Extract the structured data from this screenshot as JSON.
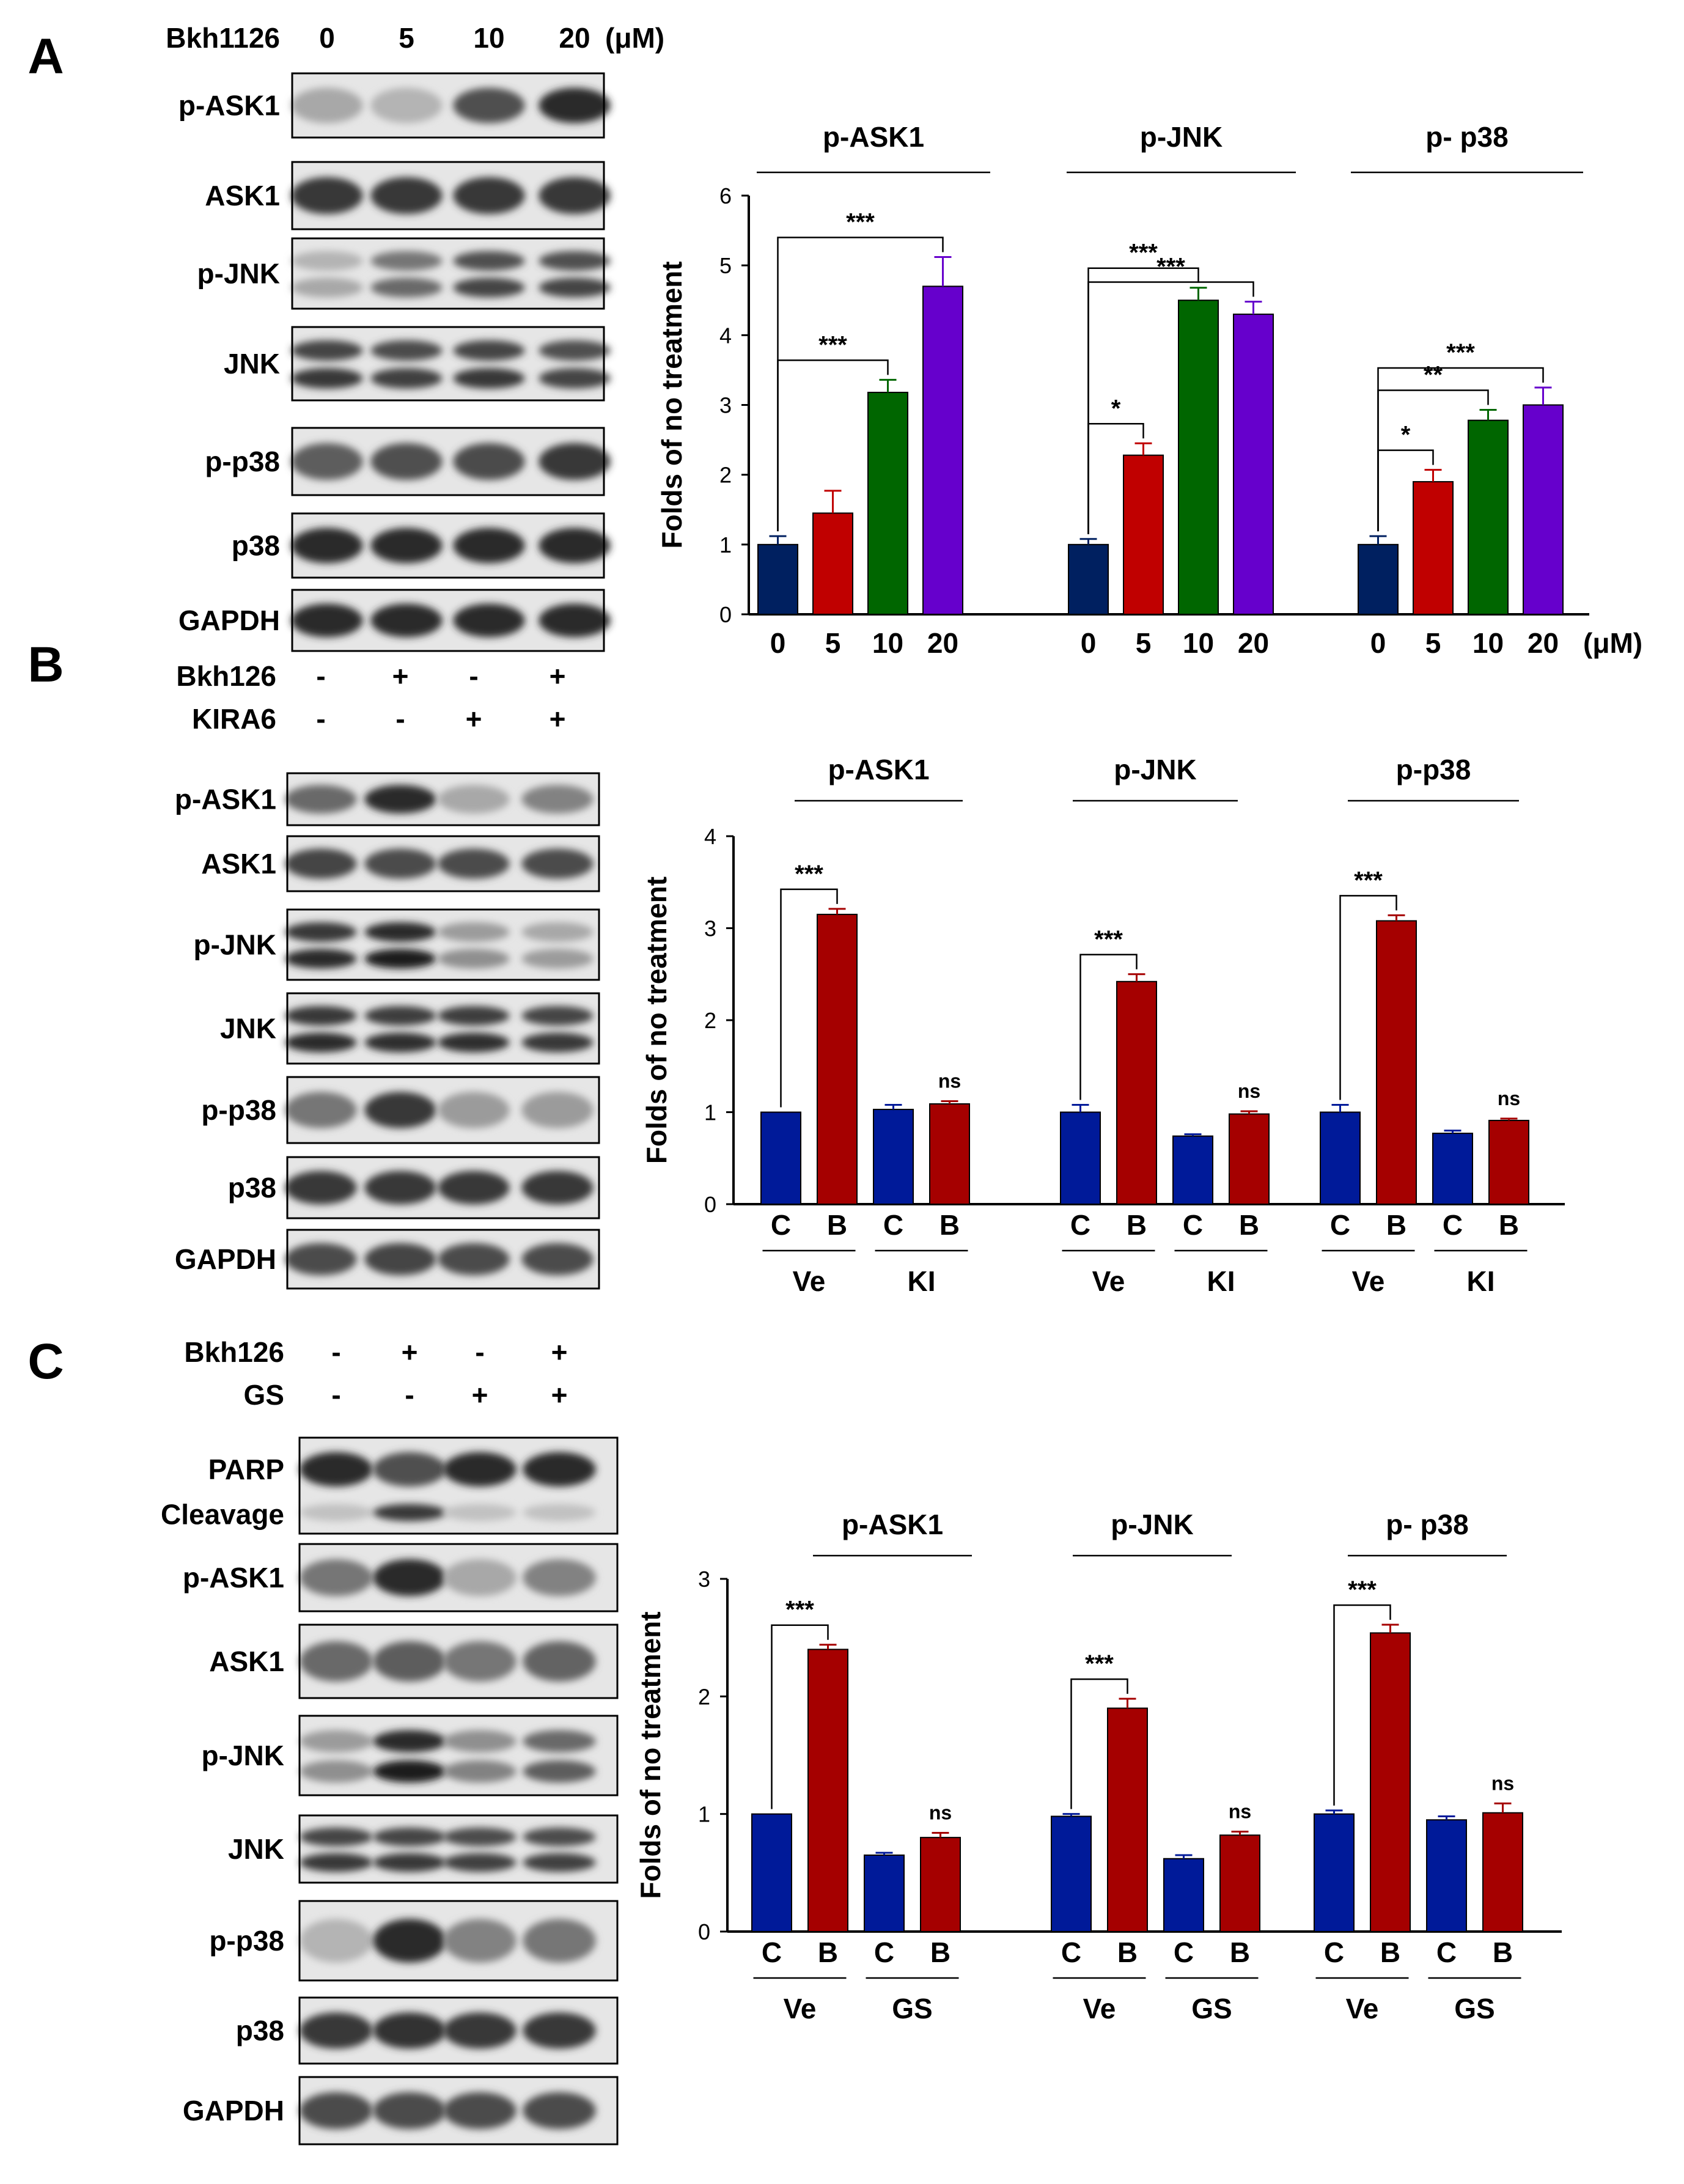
{
  "panels": [
    {
      "letter": "A",
      "blot": {
        "treatments": [
          {
            "name": "Bkh1126",
            "values": [
              "0",
              "5",
              "10",
              "20"
            ],
            "unit": "(μM)"
          }
        ],
        "rows": [
          {
            "label": "p-ASK1",
            "profile": [
              0.35,
              0.3,
              0.7,
              0.85
            ],
            "double": false
          },
          {
            "label": "ASK1",
            "profile": [
              0.8,
              0.8,
              0.8,
              0.8
            ],
            "double": false
          },
          {
            "label": "p-JNK",
            "profile": [
              0.3,
              0.55,
              0.7,
              0.7
            ],
            "double": true
          },
          {
            "label": "JNK",
            "profile": [
              0.75,
              0.72,
              0.75,
              0.7
            ],
            "double": true
          },
          {
            "label": "p-p38",
            "profile": [
              0.65,
              0.7,
              0.72,
              0.8
            ],
            "double": false
          },
          {
            "label": "p38",
            "profile": [
              0.85,
              0.85,
              0.85,
              0.85
            ],
            "double": false
          },
          {
            "label": "GAPDH",
            "profile": [
              0.85,
              0.85,
              0.85,
              0.85
            ],
            "double": false
          }
        ]
      }
    },
    {
      "letter": "B",
      "blot": {
        "treatments": [
          {
            "name": "Bkh126",
            "values": [
              "-",
              "+",
              "-",
              "+"
            ],
            "unit": ""
          },
          {
            "name": "KIRA6",
            "values": [
              "-",
              "-",
              "+",
              "+"
            ],
            "unit": ""
          }
        ],
        "rows": [
          {
            "label": "p-ASK1",
            "profile": [
              0.6,
              0.85,
              0.35,
              0.5
            ],
            "double": false
          },
          {
            "label": "ASK1",
            "profile": [
              0.75,
              0.72,
              0.72,
              0.72
            ],
            "double": false
          },
          {
            "label": "p-JNK",
            "profile": [
              0.8,
              0.85,
              0.4,
              0.35
            ],
            "double": true
          },
          {
            "label": "JNK",
            "profile": [
              0.8,
              0.78,
              0.78,
              0.75
            ],
            "double": true
          },
          {
            "label": "p-p38",
            "profile": [
              0.55,
              0.8,
              0.4,
              0.4
            ],
            "double": false
          },
          {
            "label": "p38",
            "profile": [
              0.8,
              0.8,
              0.8,
              0.8
            ],
            "double": false
          },
          {
            "label": "GAPDH",
            "profile": [
              0.72,
              0.75,
              0.72,
              0.72
            ],
            "double": false
          }
        ]
      }
    },
    {
      "letter": "C",
      "blot": {
        "treatments": [
          {
            "name": "Bkh126",
            "values": [
              "-",
              "+",
              "-",
              "+"
            ],
            "unit": ""
          },
          {
            "name": "GS",
            "values": [
              "-",
              "-",
              "+",
              "+"
            ],
            "unit": ""
          }
        ],
        "rows": [
          {
            "label": "PARP",
            "label2": "Cleavage",
            "profile": [
              0.85,
              0.7,
              0.85,
              0.85
            ],
            "profile2": [
              0.25,
              0.8,
              0.25,
              0.25
            ],
            "double": false,
            "tall": true
          },
          {
            "label": "p-ASK1",
            "profile": [
              0.55,
              0.85,
              0.35,
              0.5
            ],
            "double": false
          },
          {
            "label": "ASK1",
            "profile": [
              0.6,
              0.65,
              0.55,
              0.62
            ],
            "double": false
          },
          {
            "label": "p-JNK",
            "profile": [
              0.4,
              0.85,
              0.45,
              0.6
            ],
            "double": true
          },
          {
            "label": "JNK",
            "profile": [
              0.75,
              0.75,
              0.72,
              0.72
            ],
            "double": true
          },
          {
            "label": "p-p38",
            "profile": [
              0.3,
              0.85,
              0.5,
              0.55
            ],
            "double": false
          },
          {
            "label": "p38",
            "profile": [
              0.8,
              0.82,
              0.8,
              0.8
            ],
            "double": false
          },
          {
            "label": "GAPDH",
            "profile": [
              0.72,
              0.72,
              0.72,
              0.72
            ],
            "double": false
          }
        ]
      }
    }
  ],
  "chart_data": [
    {
      "panel": "A",
      "type": "bar",
      "ylabel": "Folds of no treatment",
      "ylim": [
        0,
        6
      ],
      "yticks": [
        0,
        1,
        2,
        3,
        4,
        5,
        6
      ],
      "x_unit": "(μM)",
      "groups": [
        {
          "title": "p-ASK1",
          "categories": [
            "0",
            "5",
            "10",
            "20"
          ],
          "values": [
            1.0,
            1.45,
            3.18,
            4.7
          ],
          "errors": [
            0.12,
            0.32,
            0.18,
            0.42
          ],
          "sig": [
            {
              "from": 0,
              "to": 2,
              "label": "***"
            },
            {
              "from": 0,
              "to": 3,
              "label": "***"
            }
          ]
        },
        {
          "title": "p-JNK",
          "categories": [
            "0",
            "5",
            "10",
            "20"
          ],
          "values": [
            1.0,
            2.28,
            4.5,
            4.3
          ],
          "errors": [
            0.08,
            0.17,
            0.18,
            0.18
          ],
          "sig": [
            {
              "from": 0,
              "to": 1,
              "label": "*"
            },
            {
              "from": 0,
              "to": 2,
              "label": "***"
            },
            {
              "from": 0,
              "to": 3,
              "label": "***"
            }
          ]
        },
        {
          "title": "p- p38",
          "categories": [
            "0",
            "5",
            "10",
            "20"
          ],
          "values": [
            1.0,
            1.9,
            2.78,
            3.0
          ],
          "errors": [
            0.12,
            0.17,
            0.15,
            0.25
          ],
          "sig": [
            {
              "from": 0,
              "to": 1,
              "label": "*"
            },
            {
              "from": 0,
              "to": 2,
              "label": "**"
            },
            {
              "from": 0,
              "to": 3,
              "label": "***"
            }
          ]
        }
      ],
      "colors": [
        "#002060",
        "#c00000",
        "#006600",
        "#6600cc"
      ]
    },
    {
      "panel": "B",
      "type": "bar",
      "ylabel": "Folds of no treatment",
      "ylim": [
        0,
        4
      ],
      "yticks": [
        0,
        1,
        2,
        3,
        4
      ],
      "groups": [
        {
          "title": "p-ASK1",
          "categories": [
            "C",
            "B",
            "C",
            "B"
          ],
          "subgroups": [
            "Ve",
            "KI"
          ],
          "values": [
            1.0,
            3.15,
            1.03,
            1.09
          ],
          "errors": [
            0.0,
            0.06,
            0.05,
            0.03
          ],
          "sig": [
            {
              "from": 0,
              "to": 1,
              "label": "***"
            }
          ],
          "ns": [
            3
          ]
        },
        {
          "title": "p-JNK",
          "categories": [
            "C",
            "B",
            "C",
            "B"
          ],
          "subgroups": [
            "Ve",
            "KI"
          ],
          "values": [
            1.0,
            2.42,
            0.74,
            0.98
          ],
          "errors": [
            0.08,
            0.08,
            0.02,
            0.03
          ],
          "sig": [
            {
              "from": 0,
              "to": 1,
              "label": "***"
            }
          ],
          "ns": [
            3
          ]
        },
        {
          "title": "p-p38",
          "categories": [
            "C",
            "B",
            "C",
            "B"
          ],
          "subgroups": [
            "Ve",
            "KI"
          ],
          "values": [
            1.0,
            3.08,
            0.77,
            0.91
          ],
          "errors": [
            0.08,
            0.06,
            0.03,
            0.02
          ],
          "sig": [
            {
              "from": 0,
              "to": 1,
              "label": "***"
            }
          ],
          "ns": [
            3
          ]
        }
      ],
      "colors": [
        "#001a99",
        "#a50000"
      ]
    },
    {
      "panel": "C",
      "type": "bar",
      "ylabel": "Folds of no treatment",
      "ylim": [
        0,
        3
      ],
      "yticks": [
        0,
        1,
        2,
        3
      ],
      "groups": [
        {
          "title": "p-ASK1",
          "categories": [
            "C",
            "B",
            "C",
            "B"
          ],
          "subgroups": [
            "Ve",
            "GS"
          ],
          "values": [
            1.0,
            2.4,
            0.65,
            0.8
          ],
          "errors": [
            0.0,
            0.04,
            0.02,
            0.04
          ],
          "sig": [
            {
              "from": 0,
              "to": 1,
              "label": "***"
            }
          ],
          "ns": [
            3
          ]
        },
        {
          "title": "p-JNK",
          "categories": [
            "C",
            "B",
            "C",
            "B"
          ],
          "subgroups": [
            "Ve",
            "GS"
          ],
          "values": [
            0.98,
            1.9,
            0.62,
            0.82
          ],
          "errors": [
            0.02,
            0.08,
            0.03,
            0.03
          ],
          "sig": [
            {
              "from": 0,
              "to": 1,
              "label": "***"
            }
          ],
          "ns": [
            3
          ]
        },
        {
          "title": "p- p38",
          "categories": [
            "C",
            "B",
            "C",
            "B"
          ],
          "subgroups": [
            "Ve",
            "GS"
          ],
          "values": [
            1.0,
            2.54,
            0.95,
            1.01
          ],
          "errors": [
            0.03,
            0.07,
            0.03,
            0.08
          ],
          "sig": [
            {
              "from": 0,
              "to": 1,
              "label": "***"
            }
          ],
          "ns": [
            3
          ]
        }
      ],
      "colors": [
        "#001a99",
        "#a50000"
      ]
    }
  ]
}
